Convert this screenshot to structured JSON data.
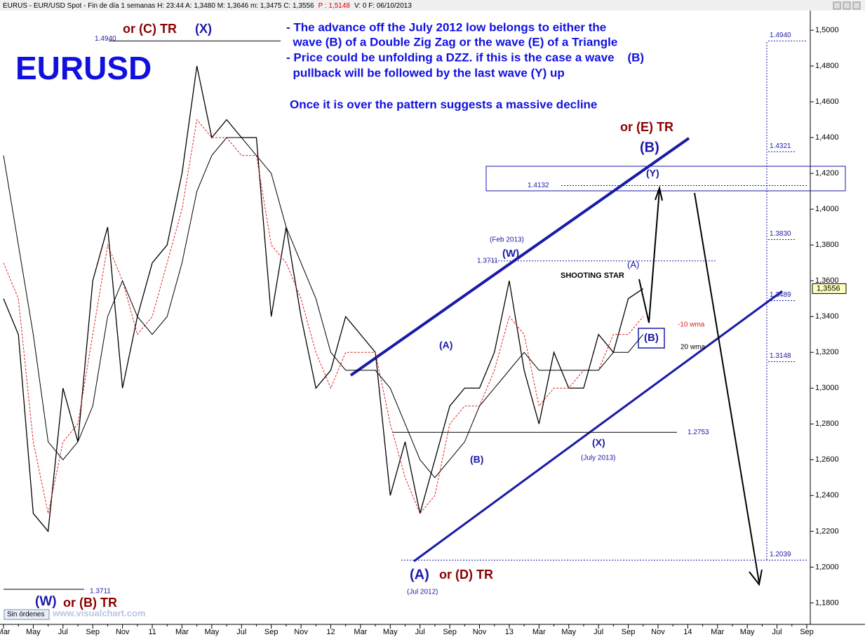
{
  "chart_data": {
    "type": "line",
    "header": {
      "text": "EURUS - EUR/USD Spot - Fin de día 1 semanas H: 23:44  A: 1,3480  M: 1,3646  m: 1,3475  C: 1,3556",
      "p": "P : 1,5148",
      "tail": "V: 0  F: 06/10/2013"
    },
    "title": "EURUSD",
    "notes": [
      "- The advance off the July 2012 low belongs to either the",
      "  wave (B) of a Double Zig Zag or the wave (E) of a Triangle",
      "- Price could be unfolding a DZZ. if this is the case a wave    (B)",
      "  pullback will be followed by the last wave (Y) up",
      "Once it is over the pattern suggests a massive decline"
    ],
    "categories": [
      "Mar",
      null,
      "May",
      null,
      "Jul",
      null,
      "Sep",
      null,
      "Nov",
      null,
      "11",
      null,
      "Mar",
      null,
      "May",
      null,
      "Jul",
      null,
      "Sep",
      null,
      "Nov",
      null,
      "12",
      null,
      "Mar",
      null,
      "May",
      null,
      "Jul",
      null,
      "Sep",
      null,
      "Nov",
      null,
      "13",
      null,
      "Mar",
      null,
      "May",
      null,
      "Jul",
      null,
      "Sep",
      null,
      "Nov",
      null,
      "14",
      null,
      "Mar",
      null,
      "May",
      null,
      "Jul",
      null,
      "Sep"
    ],
    "series": [
      {
        "color": "#000000",
        "values": [
          1.35,
          1.33,
          1.23,
          1.22,
          1.3,
          1.27,
          1.36,
          1.39,
          1.3,
          1.34,
          1.37,
          1.38,
          1.42,
          1.48,
          1.44,
          1.45,
          1.44,
          1.44,
          1.34,
          1.39,
          1.34,
          1.3,
          1.31,
          1.34,
          1.33,
          1.32,
          1.24,
          1.27,
          1.23,
          1.26,
          1.29,
          1.3,
          1.3,
          1.32,
          1.36,
          1.31,
          1.28,
          1.32,
          1.3,
          1.3,
          1.33,
          1.32,
          1.35,
          1.3556,
          null,
          null,
          null,
          null,
          null,
          null,
          null,
          null,
          null,
          null,
          null
        ]
      },
      {
        "name": "-10 wma",
        "color": "#e02020",
        "dashed": true,
        "values": [
          1.37,
          1.35,
          1.27,
          1.23,
          1.27,
          1.28,
          1.33,
          1.38,
          1.36,
          1.33,
          1.34,
          1.37,
          1.4,
          1.45,
          1.44,
          1.44,
          1.43,
          1.43,
          1.38,
          1.37,
          1.35,
          1.32,
          1.3,
          1.32,
          1.32,
          1.32,
          1.28,
          1.25,
          1.23,
          1.24,
          1.28,
          1.29,
          1.29,
          1.31,
          1.34,
          1.33,
          1.29,
          1.3,
          1.3,
          1.31,
          1.31,
          1.33,
          1.33,
          1.34,
          null,
          null,
          null,
          null,
          null,
          null,
          null,
          null,
          null,
          null,
          null
        ]
      },
      {
        "name": "20 wma",
        "color": "#000000",
        "values": [
          1.43,
          1.38,
          1.33,
          1.27,
          1.26,
          1.27,
          1.29,
          1.34,
          1.36,
          1.34,
          1.33,
          1.34,
          1.37,
          1.41,
          1.43,
          1.44,
          1.44,
          1.43,
          1.42,
          1.39,
          1.37,
          1.35,
          1.32,
          1.31,
          1.31,
          1.31,
          1.3,
          1.28,
          1.26,
          1.25,
          1.26,
          1.27,
          1.29,
          1.3,
          1.31,
          1.32,
          1.31,
          1.31,
          1.31,
          1.31,
          1.31,
          1.32,
          1.32,
          1.33,
          null,
          null,
          null,
          null,
          null,
          null,
          null,
          null,
          null,
          null,
          null
        ]
      }
    ],
    "ylim": [
      1.168,
      1.511
    ],
    "yticks": [
      {
        "value": 1.18,
        "label": "1,1800"
      },
      {
        "value": 1.2,
        "label": "1,2000"
      },
      {
        "value": 1.22,
        "label": "1,2200"
      },
      {
        "value": 1.24,
        "label": "1,2400"
      },
      {
        "value": 1.26,
        "label": "1,2600"
      },
      {
        "value": 1.28,
        "label": "1,2800"
      },
      {
        "value": 1.3,
        "label": "1,3000"
      },
      {
        "value": 1.32,
        "label": "1,3200"
      },
      {
        "value": 1.34,
        "label": "1,3400"
      },
      {
        "value": 1.36,
        "label": "1,3600"
      },
      {
        "value": 1.38,
        "label": "1,3800"
      },
      {
        "value": 1.4,
        "label": "1,4000"
      },
      {
        "value": 1.42,
        "label": "1,4200"
      },
      {
        "value": 1.44,
        "label": "1,4400"
      },
      {
        "value": 1.46,
        "label": "1,4600"
      },
      {
        "value": 1.48,
        "label": "1,4800"
      },
      {
        "value": 1.5,
        "label": "1,5000"
      }
    ],
    "last_price": {
      "value": 1.3556,
      "label": "1,3556"
    },
    "levels": [
      {
        "value": 1.494,
        "label": "1.4940"
      },
      {
        "value": 1.4321,
        "label": "1.4321"
      },
      {
        "value": 1.4132,
        "label": "1.4132"
      },
      {
        "value": 1.383,
        "label": "1.3830"
      },
      {
        "value": 1.3711,
        "label": "1.3711"
      },
      {
        "value": 1.3489,
        "label": "1.3489"
      },
      {
        "value": 1.3148,
        "label": "1.3148"
      },
      {
        "value": 1.2753,
        "label": "1.2753"
      },
      {
        "value": 1.2039,
        "label": "1.2039"
      }
    ],
    "annotations": [
      {
        "text": "or (C) TR",
        "color": "#8b0000"
      },
      {
        "text": "(X)",
        "color": "#1a1aa8"
      },
      {
        "text": "(Feb 2013)",
        "color": "#1a1aa8"
      },
      {
        "text": "(W)",
        "color": "#1a1aa8"
      },
      {
        "text": "or (E) TR",
        "color": "#8b0000"
      },
      {
        "text": "(B)",
        "color": "#1a1aa8"
      },
      {
        "text": "(Y)",
        "color": "#1a1aa8"
      },
      {
        "text": "SHOOTING STAR",
        "color": "#000000"
      },
      {
        "text": "(A)",
        "color": "#1a1aa8"
      },
      {
        "text": "(B)",
        "color": "#1a1aa8"
      },
      {
        "text": "(A)",
        "color": "#1a1aa8"
      },
      {
        "text": "(B)",
        "color": "#1a1aa8"
      },
      {
        "text": "(X)",
        "color": "#1a1aa8"
      },
      {
        "text": "(July 2013)",
        "color": "#1a1aa8"
      },
      {
        "text": "(A)",
        "color": "#1a1aa8"
      },
      {
        "text": "or (D) TR",
        "color": "#8b0000"
      },
      {
        "text": "(Jul 2012)",
        "color": "#1a1aa8"
      },
      {
        "text": "(W)",
        "color": "#1a1aa8"
      },
      {
        "text": "or (B) TR",
        "color": "#8b0000"
      },
      {
        "text": "1.3711",
        "color": "#1a1aa8"
      }
    ],
    "footer": [
      "Sin órdenes",
      "www.visualchart.com"
    ]
  }
}
